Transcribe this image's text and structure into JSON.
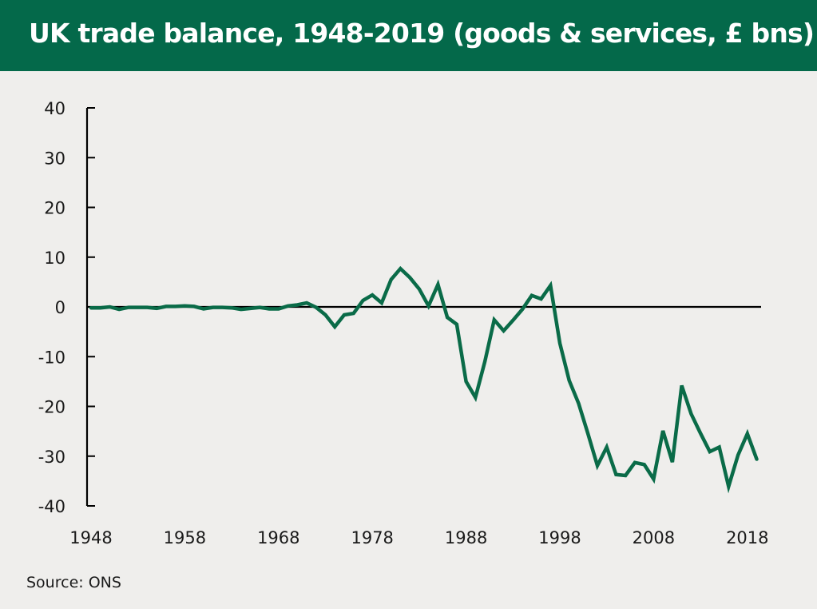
{
  "header": {
    "title": "UK trade balance, 1948-2019 (goods & services, £ bns)"
  },
  "footer": {
    "source": "Source: ONS"
  },
  "colors": {
    "header_bg": "#04694a",
    "line": "#0a6b48",
    "background": "#efeeec",
    "axis": "#000000"
  },
  "chart_data": {
    "type": "line",
    "title": "UK trade balance, 1948-2019 (goods & services, £ bns)",
    "xlabel": "",
    "ylabel": "",
    "xlim": [
      1948,
      2019
    ],
    "ylim": [
      -40,
      40
    ],
    "y_ticks": [
      40,
      30,
      20,
      10,
      0,
      -10,
      -20,
      -30,
      -40
    ],
    "y_tick_labels": [
      "40",
      "30",
      "20",
      "10",
      "0",
      "-10",
      "-20",
      "-30",
      "-40"
    ],
    "x_ticks": [
      1948,
      1958,
      1968,
      1978,
      1988,
      1998,
      2008,
      2018
    ],
    "x_tick_labels": [
      "1948",
      "1958",
      "1968",
      "1978",
      "1988",
      "1998",
      "2008",
      "2018"
    ],
    "grid": false,
    "zero_line": true,
    "legend": "none",
    "series": [
      {
        "name": "UK trade balance",
        "x": [
          1948,
          1949,
          1950,
          1951,
          1952,
          1953,
          1954,
          1955,
          1956,
          1957,
          1958,
          1959,
          1960,
          1961,
          1962,
          1963,
          1964,
          1965,
          1966,
          1967,
          1968,
          1969,
          1970,
          1971,
          1972,
          1973,
          1974,
          1975,
          1976,
          1977,
          1978,
          1979,
          1980,
          1981,
          1982,
          1983,
          1984,
          1985,
          1986,
          1987,
          1988,
          1989,
          1990,
          1991,
          1992,
          1993,
          1994,
          1995,
          1996,
          1997,
          1998,
          1999,
          2000,
          2001,
          2002,
          2003,
          2004,
          2005,
          2006,
          2007,
          2008,
          2009,
          2010,
          2011,
          2012,
          2013,
          2014,
          2015,
          2016,
          2017,
          2018,
          2019
        ],
        "values": [
          -0.2,
          -0.2,
          0.0,
          -0.5,
          -0.1,
          -0.1,
          -0.1,
          -0.3,
          0.1,
          0.1,
          0.2,
          0.1,
          -0.4,
          -0.1,
          -0.1,
          -0.2,
          -0.5,
          -0.3,
          -0.1,
          -0.4,
          -0.4,
          0.2,
          0.4,
          0.8,
          -0.1,
          -1.6,
          -4.0,
          -1.6,
          -1.3,
          1.3,
          2.4,
          0.8,
          5.5,
          7.7,
          5.9,
          3.6,
          0.2,
          4.5,
          -2.1,
          -3.5,
          -15.0,
          -18.2,
          -11.0,
          -2.6,
          -4.8,
          -2.7,
          -0.5,
          2.3,
          1.6,
          4.3,
          -7.3,
          -14.8,
          -19.4,
          -25.5,
          -31.9,
          -28.2,
          -33.7,
          -33.9,
          -31.3,
          -31.7,
          -34.6,
          -24.9,
          -31.2,
          -15.8,
          -21.5,
          -25.4,
          -29.1,
          -28.2,
          -36.1,
          -29.8,
          -25.5,
          -30.6
        ]
      }
    ]
  }
}
